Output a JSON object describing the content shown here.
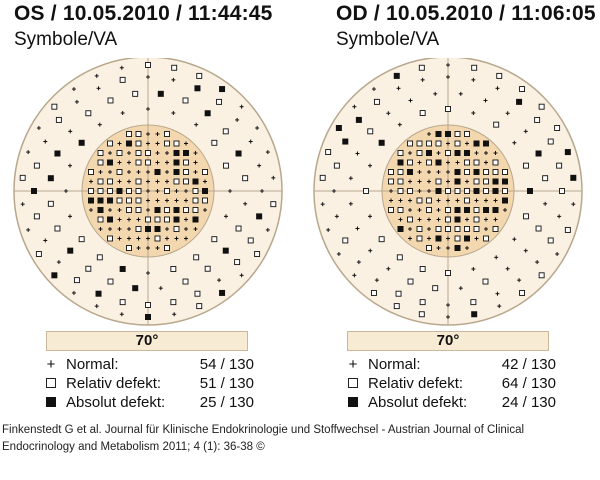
{
  "left": {
    "title": "OS / 10.05.2010 / 11:44:45",
    "subtitle": "Symbole/VA",
    "angle_label": "70°",
    "legend": [
      {
        "symbol": "plus",
        "label": "Normal:",
        "count": "54 / 130"
      },
      {
        "symbol": "open-square",
        "label": "Relativ defekt:",
        "count": "51 / 130"
      },
      {
        "symbol": "filled-square",
        "label": "Absolut defekt:",
        "count": "25 / 130"
      }
    ]
  },
  "right": {
    "title": "OD / 10.05.2010 / 11:06:05",
    "subtitle": "Symbole/VA",
    "angle_label": "70°",
    "legend": [
      {
        "symbol": "plus",
        "label": "Normal:",
        "count": "42 / 130"
      },
      {
        "symbol": "open-square",
        "label": "Relativ defekt:",
        "count": "64 / 130"
      },
      {
        "symbol": "filled-square",
        "label": "Absolut defekt:",
        "count": "24 / 130"
      }
    ]
  },
  "citation": "Finkenstedt G et al. Journal für Klinische Endokrinologie und Stoffwechsel - Austrian Journal of Clinical Endocrinology and Metabolism 2011; 4 (1): 36-38 ©",
  "colors": {
    "outer_fill": "#faf1e3",
    "inner_fill": "#f3d7ae",
    "border": "#b8a78c",
    "symbol": "#111111"
  }
}
